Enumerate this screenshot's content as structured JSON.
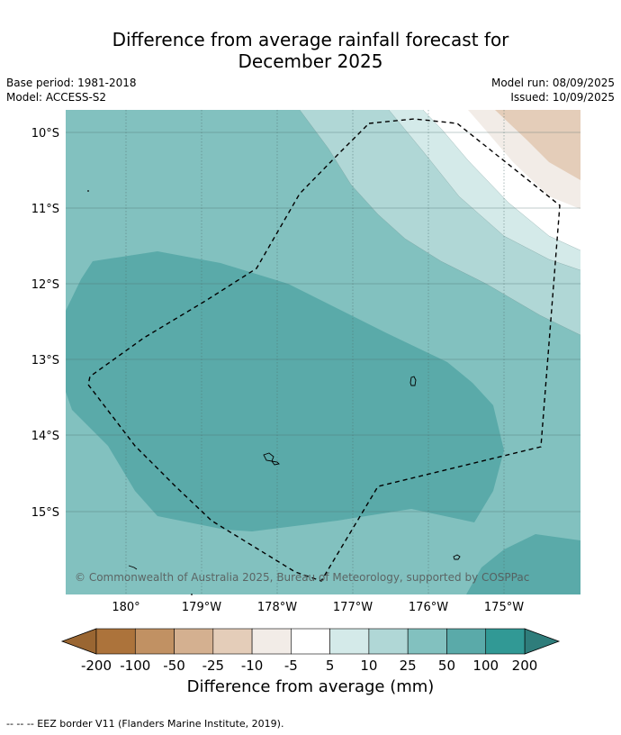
{
  "title": {
    "line1": "Difference from average rainfall forecast for",
    "line2": "December 2025"
  },
  "meta": {
    "base_period": "Base period: 1981-2018",
    "model": "Model: ACCESS-S2",
    "model_run": "Model run: 08/09/2025",
    "issued": "Issued: 10/09/2025"
  },
  "map": {
    "lat_labels": [
      "10°S",
      "11°S",
      "12°S",
      "13°S",
      "14°S",
      "15°S"
    ],
    "lon_labels": [
      "180°",
      "179°W",
      "178°W",
      "177°W",
      "176°W",
      "175°W"
    ],
    "copyright": "© Commonwealth of Australia 2025, Bureau of Meteorology, supported by COSPPac",
    "colors": {
      "c25_50": "#82c1bf",
      "c50_100": "#5aaaa9",
      "c10_25": "#b0d7d6",
      "c5_10": "#d4eae9",
      "cneg5_5": "#ffffff",
      "cneg10_neg5": "#f2ece7",
      "cneg25_neg10": "#e4cdb9"
    }
  },
  "colorbar": {
    "ticks": [
      "-200",
      "-100",
      "-50",
      "-25",
      "-10",
      "-5",
      "5",
      "10",
      "25",
      "50",
      "100",
      "200"
    ],
    "colors": [
      "#ac733b",
      "#c19163",
      "#d4b090",
      "#e4cdb9",
      "#f2ece7",
      "#ffffff",
      "#d4eae9",
      "#b0d7d6",
      "#82c1bf",
      "#5aaaa9",
      "#319995"
    ],
    "extend_low_color": "#9a6632",
    "extend_high_color": "#2f7d7b",
    "label": "Difference from average (mm)"
  },
  "footer": {
    "legend_line": "--  --  -- EEZ border V11 (Flanders Marine Institute, 2019)."
  }
}
